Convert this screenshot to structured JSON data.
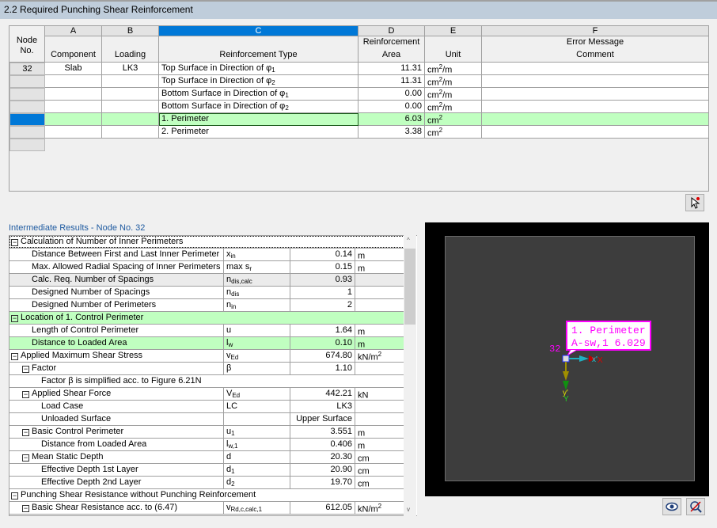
{
  "title": "2.2 Required Punching Shear Reinforcement",
  "table": {
    "letters": [
      "A",
      "B",
      "C",
      "D",
      "E",
      "F"
    ],
    "headers": {
      "node": "Node\nNo.",
      "component": "Component",
      "loading": "Loading",
      "type": "Reinforcement Type",
      "area": "Reinforcement\nArea",
      "unit": "Unit",
      "error": "Error Message\nComment"
    },
    "rows": [
      {
        "node": "32",
        "component": "Slab",
        "loading": "LK3",
        "type": "Top Surface in Direction of φ",
        "sub": "1",
        "area": "11.31",
        "unit": "cm",
        "sup": "2",
        "unit2": "/m"
      },
      {
        "node": "",
        "component": "",
        "loading": "",
        "type": "Top Surface in Direction of φ",
        "sub": "2",
        "area": "11.31",
        "unit": "cm",
        "sup": "2",
        "unit2": "/m"
      },
      {
        "node": "",
        "component": "",
        "loading": "",
        "type": "Bottom Surface in Direction of φ",
        "sub": "1",
        "area": "0.00",
        "unit": "cm",
        "sup": "2",
        "unit2": "/m"
      },
      {
        "node": "",
        "component": "",
        "loading": "",
        "type": "Bottom Surface in Direction of φ",
        "sub": "2",
        "area": "0.00",
        "unit": "cm",
        "sup": "2",
        "unit2": "/m"
      },
      {
        "node": "",
        "component": "",
        "loading": "",
        "type": "1. Perimeter",
        "sub": "",
        "area": "6.03",
        "unit": "cm",
        "sup": "2",
        "unit2": "",
        "selected": true
      },
      {
        "node": "",
        "component": "",
        "loading": "",
        "type": "2. Perimeter",
        "sub": "",
        "area": "3.38",
        "unit": "cm",
        "sup": "2",
        "unit2": ""
      }
    ]
  },
  "intermediate": {
    "title": "Intermediate Results - Node No. 32",
    "rows": [
      {
        "level": 0,
        "label": "Calculation of Number of Inner Perimeters",
        "group": true
      },
      {
        "level": 1,
        "label": "Distance Between First and Last Inner Perimeter",
        "sym": "x",
        "symsub": "in",
        "val": "0.14",
        "unit": "m"
      },
      {
        "level": 1,
        "label": "Max. Allowed Radial Spacing of Inner Perimeters",
        "sym": "max s",
        "symsub": "r",
        "val": "0.15",
        "unit": "m"
      },
      {
        "level": 1,
        "label": "Calc. Req. Number of Spacings",
        "sym": "n",
        "symsub": "dis,calc",
        "val": "0.93",
        "unit": "",
        "gray": true
      },
      {
        "level": 1,
        "label": "Designed Number of Spacings",
        "sym": "n",
        "symsub": "dis",
        "val": "1",
        "unit": ""
      },
      {
        "level": 1,
        "label": "Designed Number of Perimeters",
        "sym": "n",
        "symsub": "in",
        "val": "2",
        "unit": ""
      },
      {
        "level": 0,
        "label": "Location of 1. Control Perimeter",
        "group": true,
        "green": true
      },
      {
        "level": 1,
        "label": "Length of Control Perimeter",
        "sym": "u",
        "symsub": "",
        "val": "1.64",
        "unit": "m"
      },
      {
        "level": 1,
        "label": "Distance to Loaded Area",
        "sym": "l",
        "symsub": "w",
        "val": "0.10",
        "unit": "m",
        "green": true
      },
      {
        "level": 0,
        "label": "Applied Maximum Shear Stress",
        "toggle": true,
        "sym": "v",
        "symsub": "Ed",
        "val": "674.80",
        "unit": "kN/m",
        "unitsup": "2"
      },
      {
        "level": 1,
        "label": "Factor",
        "toggle": true,
        "sym": "β",
        "symsub": "",
        "val": "1.10",
        "unit": ""
      },
      {
        "level": 2,
        "label": "Factor β is simplified acc. to Figure 6.21N",
        "span": true
      },
      {
        "level": 1,
        "label": "Applied Shear Force",
        "toggle": true,
        "sym": "V",
        "symsub": "Ed",
        "val": "442.21",
        "unit": "kN"
      },
      {
        "level": 2,
        "label": "Load Case",
        "sym": "LC",
        "symsub": "",
        "val": "LK3",
        "unit": ""
      },
      {
        "level": 2,
        "label": "Unloaded Surface",
        "sym": "",
        "symsub": "",
        "val": "Upper Surface",
        "unit": ""
      },
      {
        "level": 1,
        "label": "Basic Control Perimeter",
        "toggle": true,
        "sym": "u",
        "symsub": "1",
        "val": "3.551",
        "unit": "m"
      },
      {
        "level": 2,
        "label": "Distance from Loaded Area",
        "sym": "l",
        "symsub": "w,1",
        "val": "0.406",
        "unit": "m"
      },
      {
        "level": 1,
        "label": "Mean Static Depth",
        "toggle": true,
        "sym": "d",
        "symsub": "",
        "val": "20.30",
        "unit": "cm"
      },
      {
        "level": 2,
        "label": "Effective Depth 1st Layer",
        "sym": "d",
        "symsub": "1",
        "val": "20.90",
        "unit": "cm"
      },
      {
        "level": 2,
        "label": "Effective Depth 2nd Layer",
        "sym": "d",
        "symsub": "2",
        "val": "19.70",
        "unit": "cm"
      },
      {
        "level": 0,
        "label": "Punching Shear Resistance without Punching Reinforcement",
        "group": true
      },
      {
        "level": 1,
        "label": "Basic Shear Resistance acc. to (6.47)",
        "toggle": true,
        "sym": "v",
        "symsub": "Rd,c,calc,1",
        "val": "612.05",
        "unit": "kN/m",
        "unitsup": "2"
      }
    ]
  },
  "graphic": {
    "node_label": "32",
    "tooltip_line1": "1. Perimeter",
    "tooltip_line2": "A-sw,1   6.029",
    "axis_x_local": "x'",
    "axis_x": "X",
    "axis_y_local": "y'",
    "axis_y": "Y"
  },
  "icons": {
    "pick": "pointer-pick-icon",
    "view": "eye-icon",
    "reset": "reset-view-icon"
  },
  "colors": {
    "selection": "#0078d7",
    "highlight": "#c0ffc0",
    "label": "#ff00ff"
  }
}
